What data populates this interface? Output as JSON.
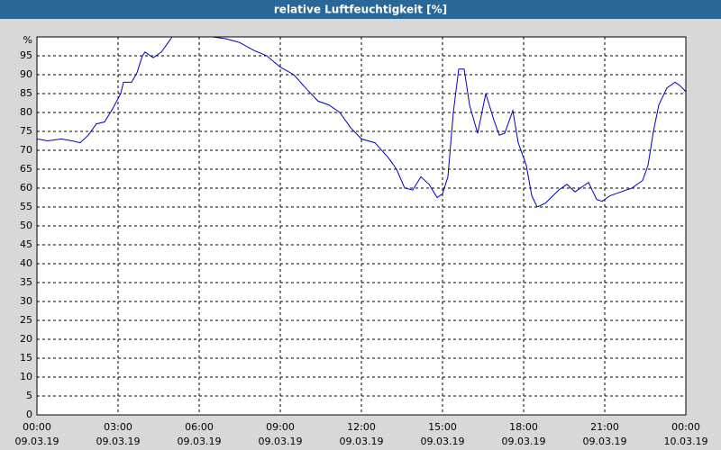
{
  "chart_data": {
    "type": "line",
    "title": "relative Luftfeuchtigkeit [%]",
    "x": [
      0,
      0.4,
      0.9,
      1.3,
      1.6,
      1.9,
      2.2,
      2.5,
      2.8,
      3.1,
      3.2,
      3.5,
      3.7,
      3.9,
      4.0,
      4.3,
      4.6,
      4.8,
      5.0,
      6.0,
      6.5,
      7.0,
      7.5,
      8.0,
      8.5,
      9.0,
      9.5,
      10.0,
      10.4,
      10.8,
      11.2,
      11.6,
      12.0,
      12.5,
      13.0,
      13.3,
      13.6,
      13.9,
      14.2,
      14.5,
      14.8,
      15.0,
      15.2,
      15.4,
      15.6,
      15.8,
      16.0,
      16.3,
      16.6,
      16.9,
      17.1,
      17.3,
      17.6,
      17.8,
      18.1,
      18.3,
      18.5,
      18.8,
      19.3,
      19.6,
      19.9,
      20.2,
      20.4,
      20.7,
      20.9,
      21.2,
      21.6,
      22.0,
      22.4,
      22.6,
      22.8,
      23.0,
      23.3,
      23.6,
      23.8,
      24.0
    ],
    "series": [
      {
        "name": "relative Luftfeuchtigkeit",
        "color": "#0000c0",
        "values": [
          73,
          72.5,
          73,
          72.5,
          72,
          74,
          77,
          77.5,
          81,
          85,
          88,
          88,
          90.5,
          95,
          96,
          94.5,
          96,
          98,
          100,
          100,
          100,
          99.5,
          98.5,
          96.5,
          95,
          92,
          90,
          86,
          83,
          82,
          80,
          76,
          73,
          72,
          68,
          65,
          60,
          59.5,
          63,
          61,
          57.5,
          58.5,
          63,
          80,
          91.5,
          91.5,
          82,
          74.5,
          85,
          78,
          74,
          74.5,
          80.5,
          72,
          66,
          58,
          55,
          56,
          59.5,
          61,
          59,
          60.5,
          61.5,
          57,
          56.5,
          58,
          59,
          60,
          62,
          66,
          75,
          82,
          86.5,
          88,
          87,
          85.5
        ]
      }
    ],
    "xlim": [
      0,
      24
    ],
    "xticks": [
      {
        "value": 0,
        "label": "00:00"
      },
      {
        "value": 3,
        "label": "03:00"
      },
      {
        "value": 6,
        "label": "06:00"
      },
      {
        "value": 9,
        "label": "09:00"
      },
      {
        "value": 12,
        "label": "12:00"
      },
      {
        "value": 15,
        "label": "15:00"
      },
      {
        "value": 18,
        "label": "18:00"
      },
      {
        "value": 21,
        "label": "21:00"
      },
      {
        "value": 24,
        "label": "00:00"
      }
    ],
    "xtick_dates": [
      "09.03.19",
      "09.03.19",
      "09.03.19",
      "09.03.19",
      "09.03.19",
      "09.03.19",
      "09.03.19",
      "09.03.19",
      "10.03.19"
    ],
    "ylim": [
      0,
      100
    ],
    "yticks": [
      0,
      5,
      10,
      15,
      20,
      25,
      30,
      35,
      40,
      45,
      50,
      55,
      60,
      65,
      70,
      75,
      80,
      85,
      90,
      95,
      {
        "value": 100,
        "label": "%"
      }
    ],
    "grid": true
  }
}
